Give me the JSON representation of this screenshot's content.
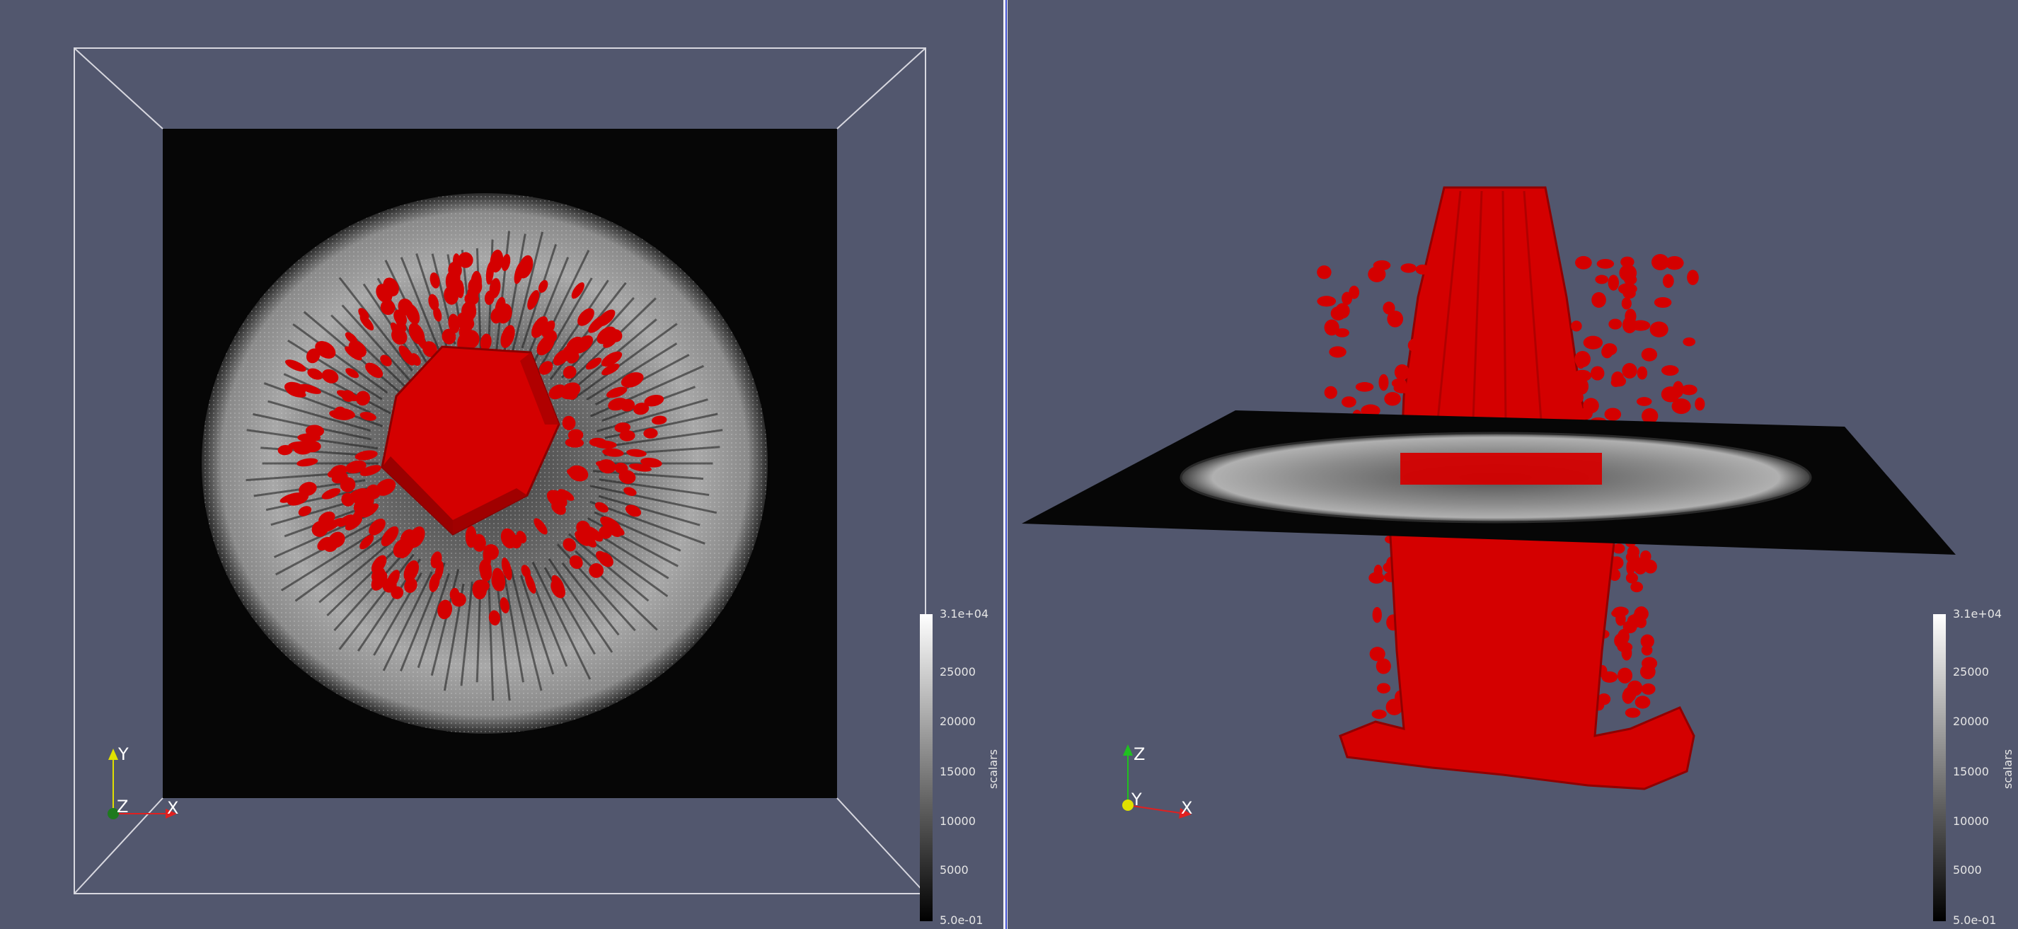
{
  "views": {
    "left": {
      "axes": {
        "y": "Y",
        "z": "Z",
        "x": "X"
      },
      "colorbar": {
        "title": "scalars",
        "ticks": [
          "3.1e+04",
          "25000",
          "20000",
          "15000",
          "10000",
          "5000",
          "5.0e-01"
        ]
      }
    },
    "right": {
      "axes": {
        "z": "Z",
        "y": "Y",
        "x": "X"
      },
      "colorbar": {
        "title": "scalars",
        "ticks": [
          "3.1e+04",
          "25000",
          "20000",
          "15000",
          "10000",
          "5000",
          "5.0e-01"
        ]
      }
    }
  },
  "colors": {
    "background": "#52576e",
    "isosurface": "#d40000",
    "divider_accent": "#4050d0"
  }
}
